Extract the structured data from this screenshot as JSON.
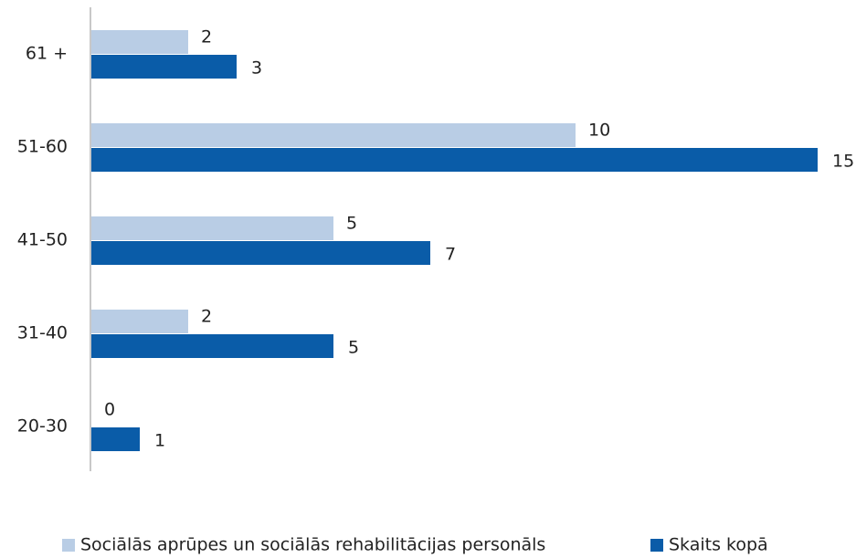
{
  "chart_data": {
    "type": "hbar",
    "categories": [
      "61 +",
      "51-60",
      "41-50",
      "31-40",
      "20-30"
    ],
    "series": [
      {
        "name": "Sociālās aprūpes un sociālās rehabilitācijas personāls",
        "color": "#b9cde5",
        "values": [
          2,
          10,
          5,
          2,
          0
        ]
      },
      {
        "name": "Skaits kopā",
        "color": "#0a5ca8",
        "values": [
          3,
          15,
          7,
          5,
          1
        ]
      }
    ],
    "xlim": [
      0,
      15
    ],
    "legend": "bottom"
  }
}
